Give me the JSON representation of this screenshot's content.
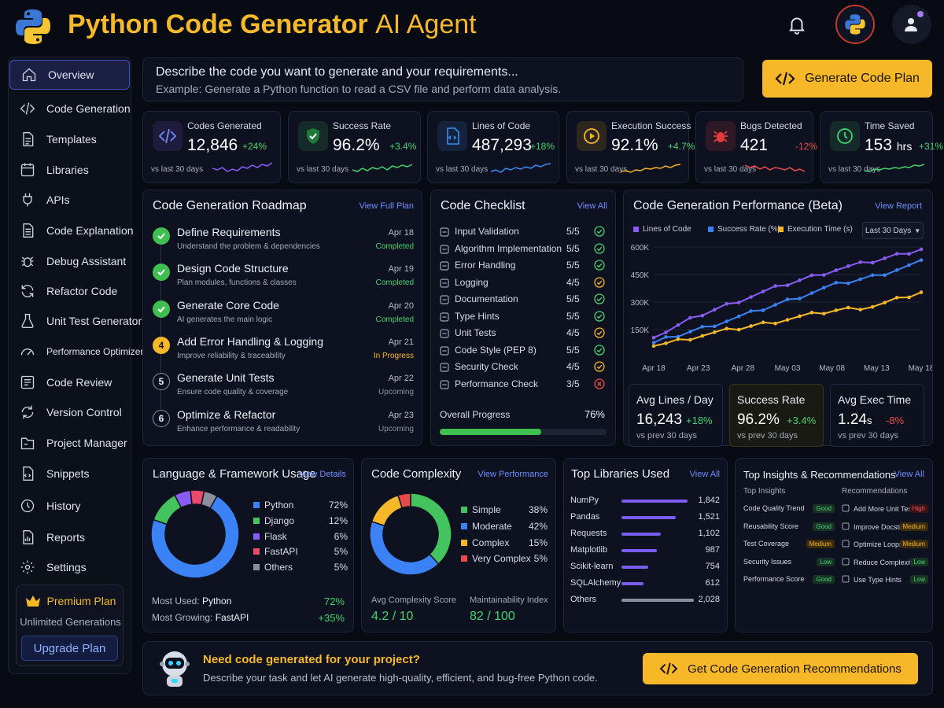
{
  "header": {
    "title_bold": "Python Code Generator",
    "title_light": "AI Agent"
  },
  "sidebar": {
    "items": [
      {
        "label": "Overview",
        "icon": "home-icon"
      },
      {
        "label": "Code Generation",
        "icon": "code-icon"
      },
      {
        "label": "Templates",
        "icon": "document-icon"
      },
      {
        "label": "Libraries",
        "icon": "library-icon"
      },
      {
        "label": "APIs",
        "icon": "plug-icon"
      },
      {
        "label": "Code Explanation",
        "icon": "file-text-icon"
      },
      {
        "label": "Debug Assistant",
        "icon": "bug-icon"
      },
      {
        "label": "Refactor Code",
        "icon": "refresh-icon"
      },
      {
        "label": "Unit Test Generator",
        "icon": "test-tube-icon"
      },
      {
        "label": "Performance Optimizer",
        "icon": "gauge-icon"
      },
      {
        "label": "Code Review",
        "icon": "review-icon"
      },
      {
        "label": "Version Control",
        "icon": "sync-icon"
      },
      {
        "label": "Project Manager",
        "icon": "folder-icon"
      },
      {
        "label": "Snippets",
        "icon": "snippet-icon"
      },
      {
        "label": "History",
        "icon": "history-icon"
      },
      {
        "label": "Reports",
        "icon": "report-icon"
      },
      {
        "label": "Settings",
        "icon": "gear-icon"
      }
    ],
    "premium": {
      "title": "Premium Plan",
      "subtitle": "Unlimited Generations",
      "button": "Upgrade Plan"
    }
  },
  "prompt": {
    "placeholder": "Describe the code you want to generate and your requirements...",
    "example": "Example: Generate a Python function to read a CSV file and perform data analysis.",
    "button": "Generate Code Plan"
  },
  "stats": [
    {
      "label": "Codes Generated",
      "value": "12,846",
      "unit": "",
      "delta": "+24%",
      "sub": "vs last 30 days",
      "color": "#8a5cf6"
    },
    {
      "label": "Success Rate",
      "value": "96.2%",
      "unit": "",
      "delta": "+3.4%",
      "sub": "vs last 30 days",
      "color": "#43d36e"
    },
    {
      "label": "Lines of Code",
      "value": "487,293",
      "unit": "",
      "delta": "+18%",
      "sub": "vs last 30 days",
      "color": "#3b8cf6"
    },
    {
      "label": "Execution Success",
      "value": "92.1%",
      "unit": "",
      "delta": "+4.7%",
      "sub": "vs last 30 days",
      "color": "#f6b729"
    },
    {
      "label": "Bugs Detected",
      "value": "421",
      "unit": "",
      "delta": "-12%",
      "sub": "vs last 30 days",
      "color": "#ef4b4b"
    },
    {
      "label": "Time Saved",
      "value": "153",
      "unit": "hrs",
      "delta": "+31%",
      "sub": "vs last 30 days",
      "color": "#43d36e"
    }
  ],
  "roadmap": {
    "title": "Code Generation Roadmap",
    "link": "View Full Plan",
    "steps": [
      {
        "num": "1",
        "title": "Define Requirements",
        "sub": "Understand the problem & dependencies",
        "date": "Apr 18",
        "status": "Completed"
      },
      {
        "num": "2",
        "title": "Design Code Structure",
        "sub": "Plan modules, functions & classes",
        "date": "Apr 19",
        "status": "Completed"
      },
      {
        "num": "3",
        "title": "Generate Core Code",
        "sub": "AI generates the main logic",
        "date": "Apr 20",
        "status": "Completed"
      },
      {
        "num": "4",
        "title": "Add Error Handling & Logging",
        "sub": "Improve reliability & traceability",
        "date": "Apr 21",
        "status": "In Progress"
      },
      {
        "num": "5",
        "title": "Generate Unit Tests",
        "sub": "Ensure code quality & coverage",
        "date": "Apr 22",
        "status": "Upcoming"
      },
      {
        "num": "6",
        "title": "Optimize & Refactor",
        "sub": "Enhance performance & readability",
        "date": "Apr 23",
        "status": "Upcoming"
      }
    ]
  },
  "checklist": {
    "title": "Code Checklist",
    "link": "View All",
    "items": [
      {
        "label": "Input Validation",
        "score": "5/5",
        "state": "ok"
      },
      {
        "label": "Algorithm Implementation",
        "score": "5/5",
        "state": "ok"
      },
      {
        "label": "Error Handling",
        "score": "5/5",
        "state": "ok"
      },
      {
        "label": "Logging",
        "score": "4/5",
        "state": "warn"
      },
      {
        "label": "Documentation",
        "score": "5/5",
        "state": "ok"
      },
      {
        "label": "Type Hints",
        "score": "5/5",
        "state": "ok"
      },
      {
        "label": "Unit Tests",
        "score": "4/5",
        "state": "warn"
      },
      {
        "label": "Code Style (PEP 8)",
        "score": "5/5",
        "state": "ok"
      },
      {
        "label": "Security Check",
        "score": "4/5",
        "state": "warn"
      },
      {
        "label": "Performance Check",
        "score": "3/5",
        "state": "fail"
      }
    ],
    "progress_label": "Overall Progress",
    "progress_value": "76%",
    "progress": 0.76
  },
  "performance": {
    "title": "Code Generation Performance (Beta)",
    "link": "View Report",
    "range": "Last 30 Days",
    "cards": [
      {
        "title": "Avg Lines / Day",
        "value": "16,243",
        "unit": "",
        "delta": "+18%",
        "sub": "vs prev 30 days"
      },
      {
        "title": "Success Rate",
        "value": "96.2%",
        "unit": "",
        "delta": "+3.4%",
        "sub": "vs prev 30 days"
      },
      {
        "title": "Avg Exec Time",
        "value": "1.24",
        "unit": "s",
        "delta": "-8%",
        "sub": "vs prev 30 days"
      }
    ]
  },
  "chart_data": {
    "type": "line",
    "x": [
      "Apr 18",
      "Apr 23",
      "Apr 28",
      "May 03",
      "May 08",
      "May 13",
      "May 18"
    ],
    "yticks": [
      "600K",
      "450K",
      "300K",
      "150K"
    ],
    "ylim": [
      0,
      600
    ],
    "series": [
      {
        "name": "Lines of Code",
        "color": "#8a5cf6",
        "values": [
          60,
          190,
          290,
          380,
          460,
          520,
          590
        ]
      },
      {
        "name": "Success Rate (%)",
        "color": "#3b82f6",
        "values": [
          30,
          110,
          190,
          280,
          370,
          430,
          510
        ]
      },
      {
        "name": "Execution Time (s)",
        "color": "#f6b729",
        "values": [
          10,
          70,
          120,
          170,
          220,
          250,
          330
        ]
      }
    ]
  },
  "languages": {
    "title": "Language & Framework Usage",
    "link": "View Details",
    "items": [
      {
        "name": "Python",
        "pct": "72%",
        "value": 72,
        "color": "#3b82f6"
      },
      {
        "name": "Django",
        "pct": "12%",
        "value": 12,
        "color": "#43c45e"
      },
      {
        "name": "Flask",
        "pct": "6%",
        "value": 6,
        "color": "#8a5cf6"
      },
      {
        "name": "FastAPI",
        "pct": "5%",
        "value": 5,
        "color": "#e84a6a"
      },
      {
        "name": "Others",
        "pct": "5%",
        "value": 5,
        "color": "#8a8f9c"
      }
    ],
    "most_used_label": "Most Used:",
    "most_used": "Python",
    "most_used_pct": "72%",
    "most_growing_label": "Most Growing:",
    "most_growing": "FastAPI",
    "most_growing_pct": "+35%"
  },
  "complexity": {
    "title": "Code Complexity",
    "link": "View Performance",
    "items": [
      {
        "name": "Simple",
        "pct": "38%",
        "value": 38,
        "color": "#43c45e"
      },
      {
        "name": "Moderate",
        "pct": "42%",
        "value": 42,
        "color": "#3b82f6"
      },
      {
        "name": "Complex",
        "pct": "15%",
        "value": 15,
        "color": "#f6b729"
      },
      {
        "name": "Very Complex",
        "pct": "5%",
        "value": 5,
        "color": "#e84a4a"
      }
    ],
    "avg_label": "Avg Complexity Score",
    "avg_value": "4.2 / 10",
    "maint_label": "Maintainability Index",
    "maint_value": "82 / 100"
  },
  "libraries": {
    "title": "Top Libraries Used",
    "link": "View All",
    "items": [
      {
        "name": "NumPy",
        "count": "1,842",
        "value": 1842
      },
      {
        "name": "Pandas",
        "count": "1,521",
        "value": 1521
      },
      {
        "name": "Requests",
        "count": "1,102",
        "value": 1102
      },
      {
        "name": "Matplotlib",
        "count": "987",
        "value": 987
      },
      {
        "name": "Scikit-learn",
        "count": "754",
        "value": 754
      },
      {
        "name": "SQLAlchemy",
        "count": "612",
        "value": 612
      },
      {
        "name": "Others",
        "count": "2,028",
        "value": 2028
      }
    ]
  },
  "insights": {
    "title": "Top Insights & Recommendations",
    "link": "View All",
    "left_header": "Top Insights",
    "right_header": "Recommendations",
    "left": [
      {
        "label": "Code Quality Trend",
        "badge": "Good",
        "kind": "good"
      },
      {
        "label": "Reusability Score",
        "badge": "Good",
        "kind": "good"
      },
      {
        "label": "Test Coverage",
        "badge": "Medium",
        "kind": "med"
      },
      {
        "label": "Security Issues",
        "badge": "Low",
        "kind": "low"
      },
      {
        "label": "Performance Score",
        "badge": "Good",
        "kind": "good"
      }
    ],
    "right": [
      {
        "label": "Add More Unit Tests",
        "badge": "High",
        "kind": "high"
      },
      {
        "label": "Improve Docstrings",
        "badge": "Medium",
        "kind": "med"
      },
      {
        "label": "Optimize Loops",
        "badge": "Medium",
        "kind": "med"
      },
      {
        "label": "Reduce Complexity",
        "badge": "Low",
        "kind": "low"
      },
      {
        "label": "Use Type Hints",
        "badge": "Low",
        "kind": "low"
      }
    ]
  },
  "cta": {
    "title": "Need code generated for your project?",
    "sub": "Describe your task and let AI generate high-quality, efficient, and bug-free Python code.",
    "button": "Get Code Generation Recommendations"
  }
}
